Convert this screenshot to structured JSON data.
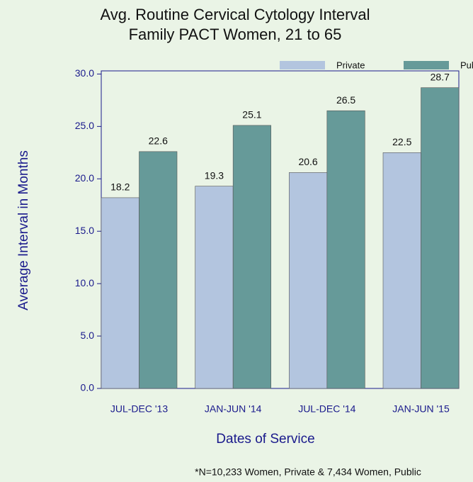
{
  "chart_data": {
    "type": "bar",
    "title": "Avg. Routine Cervical Cytology Interval",
    "subtitle": "Family PACT Women, 21 to 65",
    "x_label": "Dates of Service",
    "y_label": "Average Interval in Months",
    "footnote": "*N=10,233 Women, Private & 7,434 Women, Public",
    "categories": [
      "JUL-DEC '13",
      "JAN-JUN '14",
      "JUL-DEC '14",
      "JAN-JUN '15"
    ],
    "series": [
      {
        "name": "Private",
        "color": "#b3c5df",
        "values": [
          18.2,
          19.3,
          20.6,
          22.5
        ]
      },
      {
        "name": "Public",
        "color": "#669a99",
        "values": [
          22.6,
          25.1,
          26.5,
          28.7
        ]
      }
    ],
    "ylim": [
      0,
      30.3
    ],
    "yticks": [
      {
        "value": 0,
        "label": "0.0"
      },
      {
        "value": 5,
        "label": "5.0"
      },
      {
        "value": 10,
        "label": "10.0"
      },
      {
        "value": 15,
        "label": "15.0"
      },
      {
        "value": 20,
        "label": "20.0"
      },
      {
        "value": 25,
        "label": "25.0"
      },
      {
        "value": 30,
        "label": "30.0"
      }
    ],
    "legend": "top-right"
  }
}
